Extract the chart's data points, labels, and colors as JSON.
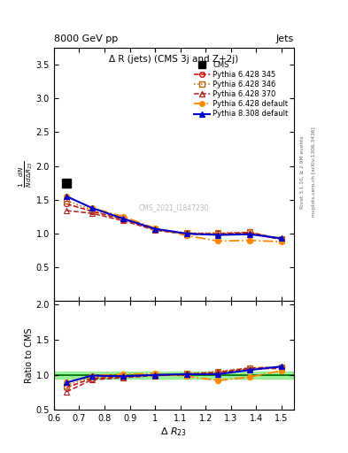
{
  "title": "Δ R (jets) (CMS 3j and Z+2j)",
  "header_left": "8000 GeV pp",
  "header_right": "Jets",
  "ylabel_main": "$\\frac{1}{N}\\frac{dN}{d\\Delta R_{23}}$",
  "ylabel_ratio": "Ratio to CMS",
  "xlabel": "$\\Delta\\ R_{23}$",
  "watermark": "CMS_2021_I1847230",
  "right_label": "Rivet 3.1.10, ≥ 2.9M events",
  "right_label2": "mcplots.cern.ch [arXiv:1306.3436]",
  "x_data": [
    0.65,
    0.75,
    0.875,
    1.0,
    1.125,
    1.25,
    1.375,
    1.5
  ],
  "cms_data": [
    1.75,
    null,
    null,
    null,
    null,
    null,
    null,
    null
  ],
  "p6_345": [
    1.44,
    1.33,
    1.21,
    1.06,
    1.0,
    1.0,
    1.02,
    0.92
  ],
  "p6_346": [
    1.49,
    1.35,
    1.22,
    1.07,
    1.01,
    1.01,
    1.02,
    0.92
  ],
  "p6_370": [
    1.34,
    1.3,
    1.19,
    1.05,
    0.99,
    0.99,
    1.01,
    0.91
  ],
  "p6_default": [
    1.55,
    1.38,
    1.25,
    1.08,
    0.97,
    0.89,
    0.9,
    0.88
  ],
  "p8_default": [
    1.55,
    1.38,
    1.22,
    1.07,
    1.0,
    0.98,
    0.99,
    0.93
  ],
  "ratio_p6_345": [
    0.82,
    0.95,
    0.97,
    1.0,
    1.01,
    1.04,
    1.1,
    1.11
  ],
  "ratio_p6_346": [
    0.85,
    0.97,
    0.97,
    1.0,
    1.02,
    1.05,
    1.1,
    1.11
  ],
  "ratio_p6_370": [
    0.76,
    0.93,
    0.96,
    0.99,
    1.0,
    1.03,
    1.09,
    1.09
  ],
  "ratio_p6_default": [
    0.89,
    0.99,
    1.01,
    1.02,
    0.98,
    0.92,
    0.97,
    1.06
  ],
  "ratio_p8_default": [
    0.89,
    0.99,
    0.98,
    1.0,
    1.01,
    1.01,
    1.07,
    1.12
  ],
  "color_p6_345": "#cc0000",
  "color_p6_346": "#bb6600",
  "color_p6_370": "#aa2222",
  "color_p6_default": "#ff8800",
  "color_p8_default": "#0000cc",
  "cms_color": "#000000",
  "ylim_main": [
    0.0,
    3.75
  ],
  "ylim_ratio": [
    0.5,
    2.05
  ],
  "yticks_main": [
    0.5,
    1.0,
    1.5,
    2.0,
    2.5,
    3.0,
    3.5
  ],
  "yticks_ratio": [
    0.5,
    1.0,
    1.5,
    2.0
  ],
  "xlim": [
    0.6,
    1.55
  ],
  "xticks": [
    0.6,
    0.7,
    0.8,
    0.9,
    1.0,
    1.1,
    1.2,
    1.3,
    1.4,
    1.5
  ]
}
